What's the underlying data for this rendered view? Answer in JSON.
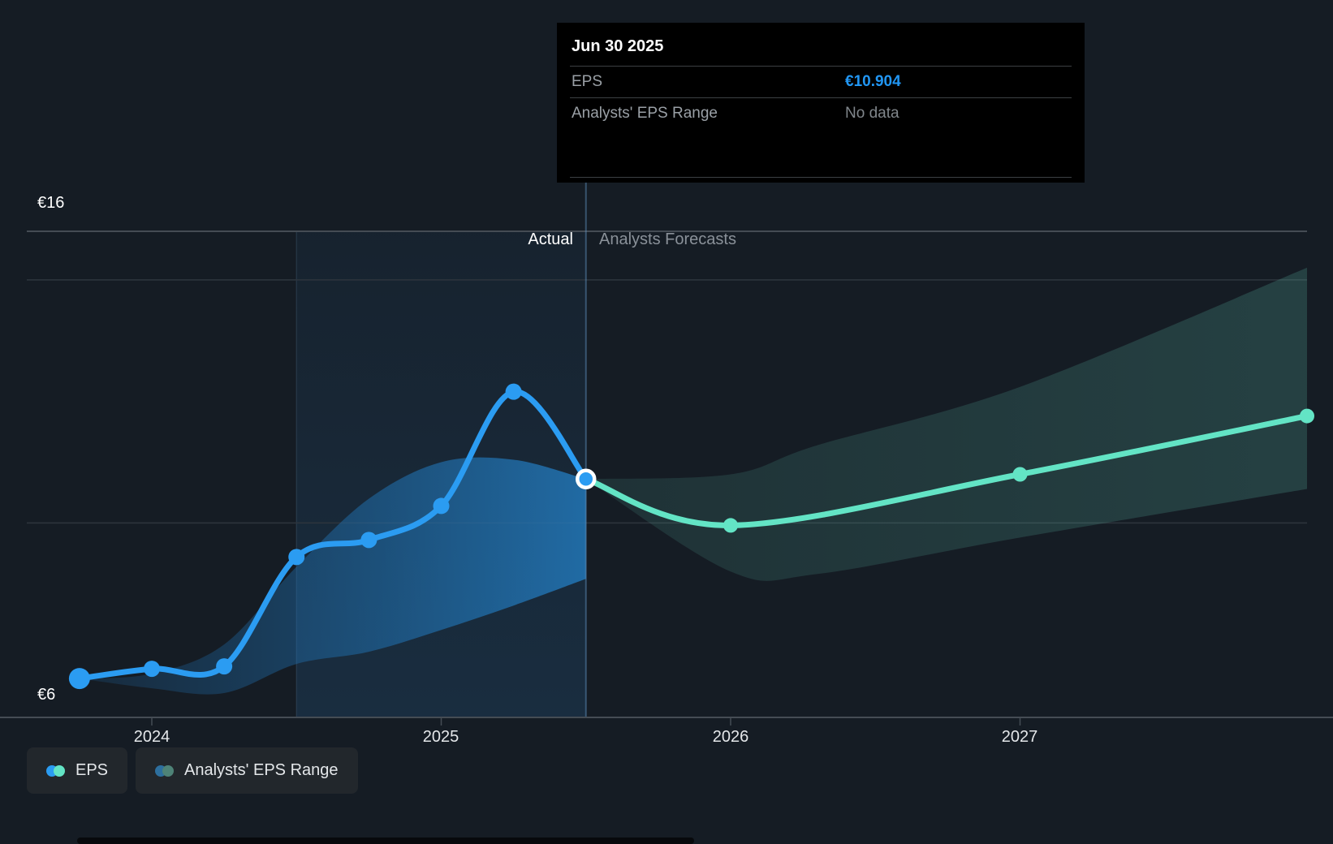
{
  "tooltip": {
    "date": "Jun 30 2025",
    "rows": [
      {
        "label": "EPS",
        "value": "€10.904"
      },
      {
        "label": "Analysts' EPS Range",
        "value": "No data"
      }
    ]
  },
  "y_axis": {
    "top": "€16",
    "bottom": "€6"
  },
  "phases": {
    "actual": "Actual",
    "forecast": "Analysts Forecasts"
  },
  "legend": [
    {
      "label": "EPS"
    },
    {
      "label": "Analysts' EPS Range"
    }
  ],
  "colors": {
    "background": "#151c24",
    "eps_line": "#2b9cf2",
    "forecast_line": "#63e4c5",
    "eps_value_text": "#2196f3",
    "tooltip_bg": "#000000",
    "gridline_major": "#454c54",
    "gridline_minor": "#2e353d",
    "legend_dot_eps_blue": "#2b9cf2",
    "legend_dot_eps_teal": "#63e4c5",
    "legend_dot_range_blue": "#2d6f9e",
    "legend_dot_range_teal": "#4e8377"
  },
  "chart_data": {
    "type": "line",
    "unit": "€",
    "ylim": [
      6,
      16
    ],
    "gridline_values": [
      16,
      15,
      10
    ],
    "axis_bottom_value": 6,
    "x_ticks": [
      {
        "label": "2024",
        "t": 2024
      },
      {
        "label": "2025",
        "t": 2025
      },
      {
        "label": "2026",
        "t": 2026
      },
      {
        "label": "2027",
        "t": 2027
      }
    ],
    "actual_window": {
      "from_t": 2024.5,
      "to_t": 2025.5
    },
    "selected_point": {
      "date": "Jun 30 2025",
      "t": 2025.5,
      "v": 10.904
    },
    "series": [
      {
        "name": "EPS (actual)",
        "color": "#2b9cf2",
        "points": [
          {
            "date": "Sep 30 2023",
            "t": 2023.75,
            "v": 6.8
          },
          {
            "date": "Dec 31 2023",
            "t": 2024.0,
            "v": 7.0
          },
          {
            "date": "Mar 31 2024",
            "t": 2024.25,
            "v": 7.05
          },
          {
            "date": "Jun 30 2024",
            "t": 2024.5,
            "v": 9.3
          },
          {
            "date": "Sep 30 2024",
            "t": 2024.75,
            "v": 9.65
          },
          {
            "date": "Dec 31 2024",
            "t": 2025.0,
            "v": 10.35
          },
          {
            "date": "Mar 31 2025",
            "t": 2025.25,
            "v": 12.7
          },
          {
            "date": "Jun 30 2025",
            "t": 2025.5,
            "v": 10.904
          }
        ]
      },
      {
        "name": "EPS (analysts forecast)",
        "color": "#63e4c5",
        "points": [
          {
            "date": "Jun 30 2025",
            "t": 2025.5,
            "v": 10.904
          },
          {
            "date": "Dec 31 2025",
            "t": 2026.0,
            "v": 9.95
          },
          {
            "date": "Dec 31 2026",
            "t": 2027.0,
            "v": 11.0
          },
          {
            "date": "Dec 31 2027",
            "t": 2028.0,
            "v": 12.2
          }
        ]
      }
    ],
    "actual_range_band": {
      "top": [
        {
          "t": 2023.75,
          "v": 6.8
        },
        {
          "t": 2024.0,
          "v": 6.9
        },
        {
          "t": 2024.25,
          "v": 7.5
        },
        {
          "t": 2024.5,
          "v": 9.1
        },
        {
          "t": 2024.75,
          "v": 10.5
        },
        {
          "t": 2025.0,
          "v": 11.25
        },
        {
          "t": 2025.25,
          "v": 11.3
        },
        {
          "t": 2025.5,
          "v": 10.9
        }
      ],
      "bottom": [
        {
          "t": 2023.75,
          "v": 6.8
        },
        {
          "t": 2024.0,
          "v": 6.6
        },
        {
          "t": 2024.25,
          "v": 6.5
        },
        {
          "t": 2024.5,
          "v": 7.1
        },
        {
          "t": 2024.75,
          "v": 7.35
        },
        {
          "t": 2025.0,
          "v": 7.8
        },
        {
          "t": 2025.25,
          "v": 8.3
        },
        {
          "t": 2025.5,
          "v": 8.85
        }
      ]
    },
    "forecast_range_band": {
      "top": [
        {
          "t": 2025.5,
          "v": 10.904
        },
        {
          "t": 2026.0,
          "v": 11.0
        },
        {
          "t": 2026.3,
          "v": 11.6
        },
        {
          "t": 2027.0,
          "v": 12.8
        },
        {
          "t": 2028.0,
          "v": 15.25
        }
      ],
      "bottom": [
        {
          "t": 2025.5,
          "v": 10.904
        },
        {
          "t": 2026.0,
          "v": 9.0
        },
        {
          "t": 2026.3,
          "v": 8.95
        },
        {
          "t": 2027.0,
          "v": 9.7
        },
        {
          "t": 2028.0,
          "v": 10.7
        }
      ]
    }
  }
}
